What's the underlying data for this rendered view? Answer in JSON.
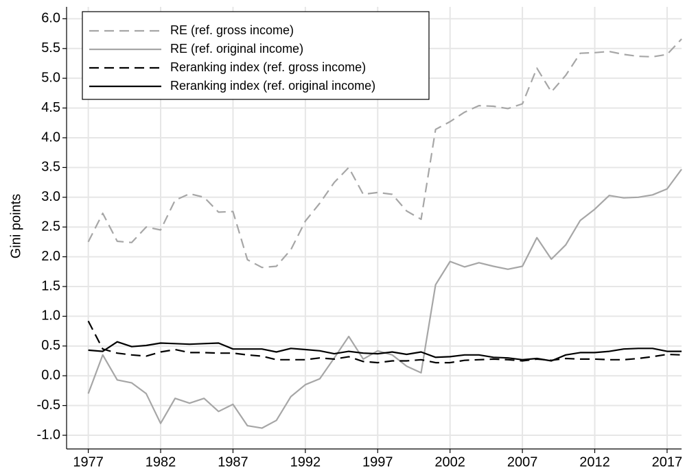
{
  "chart_data": {
    "type": "line",
    "y_label": "Gini points",
    "x": [
      1977,
      1978,
      1979,
      1980,
      1981,
      1982,
      1983,
      1984,
      1985,
      1986,
      1987,
      1988,
      1989,
      1990,
      1991,
      1992,
      1993,
      1994,
      1995,
      1996,
      1997,
      1998,
      1999,
      2000,
      2001,
      2002,
      2003,
      2004,
      2005,
      2006,
      2007,
      2008,
      2009,
      2010,
      2011,
      2012,
      2013,
      2014,
      2015,
      2016,
      2017,
      2018
    ],
    "series": [
      {
        "name": "RE (ref. gross income)",
        "color": "#a6a6a6",
        "dashed": true,
        "values": [
          2.25,
          2.73,
          2.26,
          2.24,
          2.5,
          2.45,
          2.95,
          3.06,
          3.0,
          2.75,
          2.76,
          1.95,
          1.82,
          1.84,
          2.12,
          2.6,
          2.9,
          3.25,
          3.5,
          3.05,
          3.08,
          3.05,
          2.77,
          2.63,
          4.14,
          4.27,
          4.43,
          4.54,
          4.53,
          4.49,
          4.57,
          5.17,
          4.77,
          5.05,
          5.42,
          5.43,
          5.45,
          5.4,
          5.37,
          5.36,
          5.4,
          5.66
        ]
      },
      {
        "name": "RE (ref. original income)",
        "color": "#a6a6a6",
        "dashed": false,
        "values": [
          -0.3,
          0.35,
          -0.07,
          -0.12,
          -0.3,
          -0.8,
          -0.38,
          -0.46,
          -0.38,
          -0.6,
          -0.48,
          -0.84,
          -0.88,
          -0.75,
          -0.35,
          -0.15,
          -0.05,
          0.3,
          0.66,
          0.28,
          0.42,
          0.35,
          0.16,
          0.05,
          1.53,
          1.92,
          1.83,
          1.9,
          1.84,
          1.79,
          1.84,
          2.32,
          1.96,
          2.2,
          2.61,
          2.8,
          3.03,
          2.99,
          3.0,
          3.04,
          3.14,
          3.47
        ]
      },
      {
        "name": "Reranking index (ref. gross income)",
        "color": "#000000",
        "dashed": true,
        "values": [
          0.92,
          0.45,
          0.38,
          0.35,
          0.33,
          0.4,
          0.44,
          0.39,
          0.39,
          0.38,
          0.38,
          0.35,
          0.33,
          0.27,
          0.27,
          0.27,
          0.3,
          0.28,
          0.32,
          0.24,
          0.22,
          0.25,
          0.25,
          0.27,
          0.22,
          0.22,
          0.26,
          0.27,
          0.28,
          0.27,
          0.25,
          0.28,
          0.26,
          0.29,
          0.28,
          0.28,
          0.27,
          0.27,
          0.29,
          0.32,
          0.36,
          0.35
        ]
      },
      {
        "name": "Reranking index (ref. original income)",
        "color": "#000000",
        "dashed": false,
        "values": [
          0.43,
          0.41,
          0.57,
          0.49,
          0.51,
          0.55,
          0.54,
          0.53,
          0.54,
          0.55,
          0.45,
          0.45,
          0.45,
          0.4,
          0.46,
          0.44,
          0.42,
          0.37,
          0.41,
          0.38,
          0.37,
          0.4,
          0.36,
          0.4,
          0.31,
          0.32,
          0.35,
          0.35,
          0.31,
          0.3,
          0.27,
          0.29,
          0.25,
          0.35,
          0.39,
          0.39,
          0.41,
          0.45,
          0.46,
          0.46,
          0.41,
          0.41
        ]
      }
    ],
    "xlim": [
      1975.5,
      2018
    ],
    "xticks": [
      1977,
      1982,
      1987,
      1992,
      1997,
      2002,
      2007,
      2012,
      2017
    ],
    "ylim": [
      -1.23,
      6.2
    ],
    "yticks": [
      {
        "value": -1,
        "label": "-1.0"
      },
      -0.5,
      {
        "value": 0,
        "label": "0.0"
      },
      0.5,
      {
        "value": 1,
        "label": "1.0"
      },
      1.5,
      {
        "value": 2,
        "label": "2.0"
      },
      2.5,
      {
        "value": 3,
        "label": "3.0"
      },
      3.5,
      {
        "value": 4,
        "label": "4.0"
      },
      4.5,
      {
        "value": 5,
        "label": "5.0"
      },
      5.5,
      {
        "value": 6,
        "label": "6.0"
      }
    ],
    "grid": true,
    "legend_position": "top-left"
  }
}
